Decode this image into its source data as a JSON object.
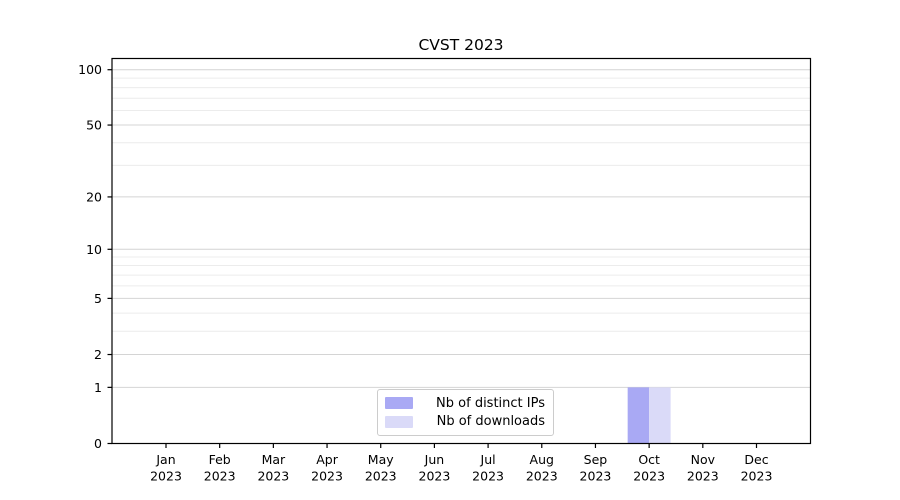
{
  "window": {
    "background": "#ffffff"
  },
  "chart_data": {
    "type": "bar",
    "title": "CVST 2023",
    "xlabel": "",
    "ylabel": "",
    "categories": [
      "Jan 2023",
      "Feb 2023",
      "Mar 2023",
      "Apr 2023",
      "May 2023",
      "Jun 2023",
      "Jul 2023",
      "Aug 2023",
      "Sep 2023",
      "Oct 2023",
      "Nov 2023",
      "Dec 2023"
    ],
    "x_tick_line1": [
      "Jan",
      "Feb",
      "Mar",
      "Apr",
      "May",
      "Jun",
      "Jul",
      "Aug",
      "Sep",
      "Oct",
      "Nov",
      "Dec"
    ],
    "x_tick_line2": "2023",
    "series": [
      {
        "name": "Nb of distinct IPs",
        "color": "#a9a9f4",
        "values": [
          0,
          0,
          0,
          0,
          0,
          0,
          0,
          0,
          0,
          1,
          0,
          0
        ]
      },
      {
        "name": "Nb of downloads",
        "color": "#dadaf8",
        "values": [
          0,
          0,
          0,
          0,
          0,
          0,
          0,
          0,
          0,
          1,
          0,
          0
        ]
      }
    ],
    "yscale": "log1p",
    "ylim": [
      0,
      115
    ],
    "y_major_ticks": [
      0,
      1,
      2,
      5,
      10,
      20,
      50,
      100
    ],
    "y_minor_gridlines": [
      3,
      4,
      6,
      7,
      8,
      9,
      30,
      40,
      60,
      70,
      80,
      90
    ],
    "grid": "horizontal-only",
    "legend_position": "lower-center",
    "colors": {
      "major_grid": "#d4d4d4",
      "minor_grid": "#ececec",
      "spine": "#000000",
      "text": "#000000",
      "legend_border": "#cccccc",
      "background": "#ffffff"
    }
  }
}
